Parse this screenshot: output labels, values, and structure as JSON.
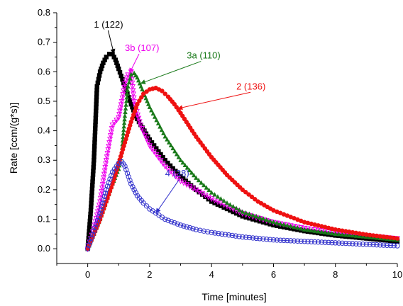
{
  "chart_data": {
    "type": "scatter",
    "xlabel": "Time [minutes]",
    "ylabel": "Rate [ccm/(g*s)]",
    "xlim": [
      -1,
      10
    ],
    "ylim": [
      -0.05,
      0.8
    ],
    "x_ticks": [
      0,
      2,
      4,
      6,
      8,
      10
    ],
    "x_tick_labels": [
      "0",
      "2",
      "4",
      "6",
      "8",
      "10"
    ],
    "y_ticks": [
      0.0,
      0.1,
      0.2,
      0.3,
      0.4,
      0.5,
      0.6,
      0.7,
      0.8
    ],
    "y_tick_labels": [
      "0.0",
      "0.1",
      "0.2",
      "0.3",
      "0.4",
      "0.5",
      "0.6",
      "0.7",
      "0.8"
    ],
    "grid": false,
    "series": [
      {
        "name": "1 (122)",
        "color": "#000000",
        "marker": "square",
        "points": [
          [
            0,
            0
          ],
          [
            0.1,
            0.13
          ],
          [
            0.2,
            0.3
          ],
          [
            0.3,
            0.55
          ],
          [
            0.4,
            0.6
          ],
          [
            0.5,
            0.63
          ],
          [
            0.6,
            0.65
          ],
          [
            0.7,
            0.66
          ],
          [
            0.8,
            0.66
          ],
          [
            0.9,
            0.64
          ],
          [
            1.0,
            0.61
          ],
          [
            1.2,
            0.55
          ],
          [
            1.4,
            0.49
          ],
          [
            1.6,
            0.44
          ],
          [
            2,
            0.37
          ],
          [
            2.5,
            0.3
          ],
          [
            3,
            0.245
          ],
          [
            3.5,
            0.2
          ],
          [
            4,
            0.16
          ],
          [
            5,
            0.11
          ],
          [
            6,
            0.08
          ],
          [
            7,
            0.06
          ],
          [
            8,
            0.045
          ],
          [
            9,
            0.035
          ],
          [
            10,
            0.025
          ]
        ]
      },
      {
        "name": "3b (107)",
        "color": "#ee00ee",
        "marker": "triangle-down",
        "points": [
          [
            0,
            0
          ],
          [
            0.2,
            0.07
          ],
          [
            0.4,
            0.16
          ],
          [
            0.6,
            0.3
          ],
          [
            0.8,
            0.42
          ],
          [
            1.0,
            0.445
          ],
          [
            1.1,
            0.5
          ],
          [
            1.2,
            0.56
          ],
          [
            1.3,
            0.59
          ],
          [
            1.4,
            0.6
          ],
          [
            1.5,
            0.5
          ],
          [
            1.7,
            0.42
          ],
          [
            2,
            0.35
          ],
          [
            2.5,
            0.28
          ],
          [
            3,
            0.23
          ],
          [
            3.5,
            0.2
          ],
          [
            4,
            0.17
          ],
          [
            5,
            0.12
          ],
          [
            6,
            0.09
          ],
          [
            7,
            0.07
          ],
          [
            8,
            0.055
          ],
          [
            9,
            0.045
          ],
          [
            10,
            0.035
          ]
        ]
      },
      {
        "name": "3a (110)",
        "color": "#1a7a1a",
        "marker": "triangle-up",
        "points": [
          [
            0,
            0
          ],
          [
            0.2,
            0.05
          ],
          [
            0.4,
            0.1
          ],
          [
            0.6,
            0.16
          ],
          [
            0.8,
            0.22
          ],
          [
            1.0,
            0.27
          ],
          [
            1.1,
            0.33
          ],
          [
            1.2,
            0.45
          ],
          [
            1.3,
            0.55
          ],
          [
            1.4,
            0.59
          ],
          [
            1.5,
            0.595
          ],
          [
            1.6,
            0.58
          ],
          [
            1.8,
            0.53
          ],
          [
            2,
            0.48
          ],
          [
            2.5,
            0.38
          ],
          [
            3,
            0.3
          ],
          [
            3.5,
            0.24
          ],
          [
            4,
            0.19
          ],
          [
            4.5,
            0.155
          ],
          [
            5,
            0.125
          ],
          [
            6,
            0.09
          ],
          [
            7,
            0.065
          ],
          [
            8,
            0.05
          ],
          [
            9,
            0.04
          ],
          [
            10,
            0.03
          ]
        ]
      },
      {
        "name": "2 (136)",
        "color": "#ee1111",
        "marker": "circle",
        "points": [
          [
            0,
            0
          ],
          [
            0.2,
            0.05
          ],
          [
            0.4,
            0.1
          ],
          [
            0.6,
            0.16
          ],
          [
            0.8,
            0.22
          ],
          [
            1.0,
            0.29
          ],
          [
            1.2,
            0.36
          ],
          [
            1.4,
            0.43
          ],
          [
            1.6,
            0.49
          ],
          [
            1.8,
            0.525
          ],
          [
            2.0,
            0.54
          ],
          [
            2.2,
            0.545
          ],
          [
            2.4,
            0.535
          ],
          [
            2.6,
            0.515
          ],
          [
            2.8,
            0.49
          ],
          [
            3.0,
            0.46
          ],
          [
            3.5,
            0.38
          ],
          [
            4,
            0.31
          ],
          [
            4.5,
            0.25
          ],
          [
            5,
            0.2
          ],
          [
            5.5,
            0.16
          ],
          [
            6,
            0.13
          ],
          [
            7,
            0.09
          ],
          [
            8,
            0.065
          ],
          [
            9,
            0.048
          ],
          [
            10,
            0.035
          ]
        ]
      },
      {
        "name": "4 (38)",
        "color": "#3333cc",
        "marker": "circle-open",
        "points": [
          [
            0,
            0
          ],
          [
            0.2,
            0.06
          ],
          [
            0.4,
            0.12
          ],
          [
            0.6,
            0.2
          ],
          [
            0.8,
            0.26
          ],
          [
            1.0,
            0.29
          ],
          [
            1.1,
            0.295
          ],
          [
            1.2,
            0.28
          ],
          [
            1.4,
            0.22
          ],
          [
            1.6,
            0.18
          ],
          [
            1.8,
            0.155
          ],
          [
            2,
            0.135
          ],
          [
            2.5,
            0.1
          ],
          [
            3,
            0.08
          ],
          [
            3.5,
            0.065
          ],
          [
            4,
            0.055
          ],
          [
            5,
            0.04
          ],
          [
            6,
            0.03
          ],
          [
            7,
            0.025
          ],
          [
            8,
            0.02
          ],
          [
            9,
            0.015
          ],
          [
            10,
            0.01
          ]
        ]
      }
    ],
    "annotations": [
      {
        "text": "1 (122)",
        "color": "#000000",
        "target": [
          0.85,
          0.66
        ],
        "pos": [
          0.2,
          0.75
        ]
      },
      {
        "text": "3b (107)",
        "color": "#ee00ee",
        "target": [
          1.35,
          0.595
        ],
        "pos": [
          1.2,
          0.67
        ]
      },
      {
        "text": "3a (110)",
        "color": "#1a7a1a",
        "target": [
          1.7,
          0.56
        ],
        "pos": [
          3.2,
          0.645
        ]
      },
      {
        "text": "2 (136)",
        "color": "#ee1111",
        "target": [
          2.9,
          0.475
        ],
        "pos": [
          4.8,
          0.54
        ]
      },
      {
        "text": "4 (38)",
        "color": "#3333cc",
        "target": [
          2.2,
          0.12
        ],
        "pos": [
          2.5,
          0.245
        ]
      }
    ]
  }
}
